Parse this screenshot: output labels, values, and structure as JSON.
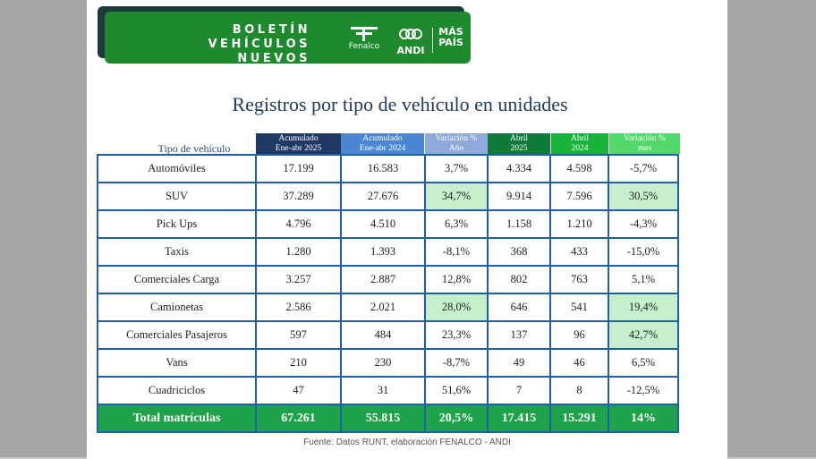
{
  "banner": {
    "title_line1": "BOLETÍN",
    "title_line2": "VEHÍCULOS NUEVOS",
    "logos": {
      "fenalco": "Fenalco",
      "andi": "ANDI",
      "maspais_line1": "MÁS",
      "maspais_line2": "PAÍS"
    }
  },
  "title": "Registros por tipo de vehículo en unidades",
  "table": {
    "row_label_header": "Tipo de vehículo",
    "columns": [
      {
        "line1": "Acumulado",
        "line2": "Ene-abr 2025",
        "color": "#1f3864"
      },
      {
        "line1": "Acumulado",
        "line2": "Ene-abr 2024",
        "color": "#4a86d4"
      },
      {
        "line1": "Variación %",
        "line2": "Año",
        "color": "#8eaadb"
      },
      {
        "line1": "Abril",
        "line2": "2025",
        "color": "#0f7a3a"
      },
      {
        "line1": "Abril",
        "line2": "2024",
        "color": "#19b33c"
      },
      {
        "line1": "Variación %",
        "line2": "mes",
        "color": "#53d96b"
      }
    ],
    "highlight_color": "#c6efce",
    "rows": [
      {
        "name": "Automóviles",
        "values": [
          "17.199",
          "16.583",
          "3,7%",
          "4.334",
          "4.598",
          "-5,7%"
        ],
        "highlight": []
      },
      {
        "name": "SUV",
        "values": [
          "37.289",
          "27.676",
          "34,7%",
          "9.914",
          "7.596",
          "30,5%"
        ],
        "highlight": [
          2,
          5
        ]
      },
      {
        "name": "Pick Ups",
        "values": [
          "4.796",
          "4.510",
          "6,3%",
          "1.158",
          "1.210",
          "-4,3%"
        ],
        "highlight": []
      },
      {
        "name": "Taxis",
        "values": [
          "1.280",
          "1.393",
          "-8,1%",
          "368",
          "433",
          "-15,0%"
        ],
        "highlight": []
      },
      {
        "name": "Comerciales Carga",
        "values": [
          "3.257",
          "2.887",
          "12,8%",
          "802",
          "763",
          "5,1%"
        ],
        "highlight": []
      },
      {
        "name": "Camionetas",
        "values": [
          "2.586",
          "2.021",
          "28,0%",
          "646",
          "541",
          "19,4%"
        ],
        "highlight": [
          2,
          5
        ]
      },
      {
        "name": "Comerciales Pasajeros",
        "values": [
          "597",
          "484",
          "23,3%",
          "137",
          "96",
          "42,7%"
        ],
        "highlight": [
          5
        ]
      },
      {
        "name": "Vans",
        "values": [
          "210",
          "230",
          "-8,7%",
          "49",
          "46",
          "6,5%"
        ],
        "highlight": []
      },
      {
        "name": "Cuadriciclos",
        "values": [
          "47",
          "31",
          "51,6%",
          "7",
          "8",
          "-12,5%"
        ],
        "highlight": []
      }
    ],
    "total": {
      "name": "Total matrículas",
      "values": [
        "67.261",
        "55.815",
        "20,5%",
        "17.415",
        "15.291",
        "14%"
      ]
    }
  },
  "source": "Fuente: Datos RUNT, elaboración FENALCO - ANDI"
}
